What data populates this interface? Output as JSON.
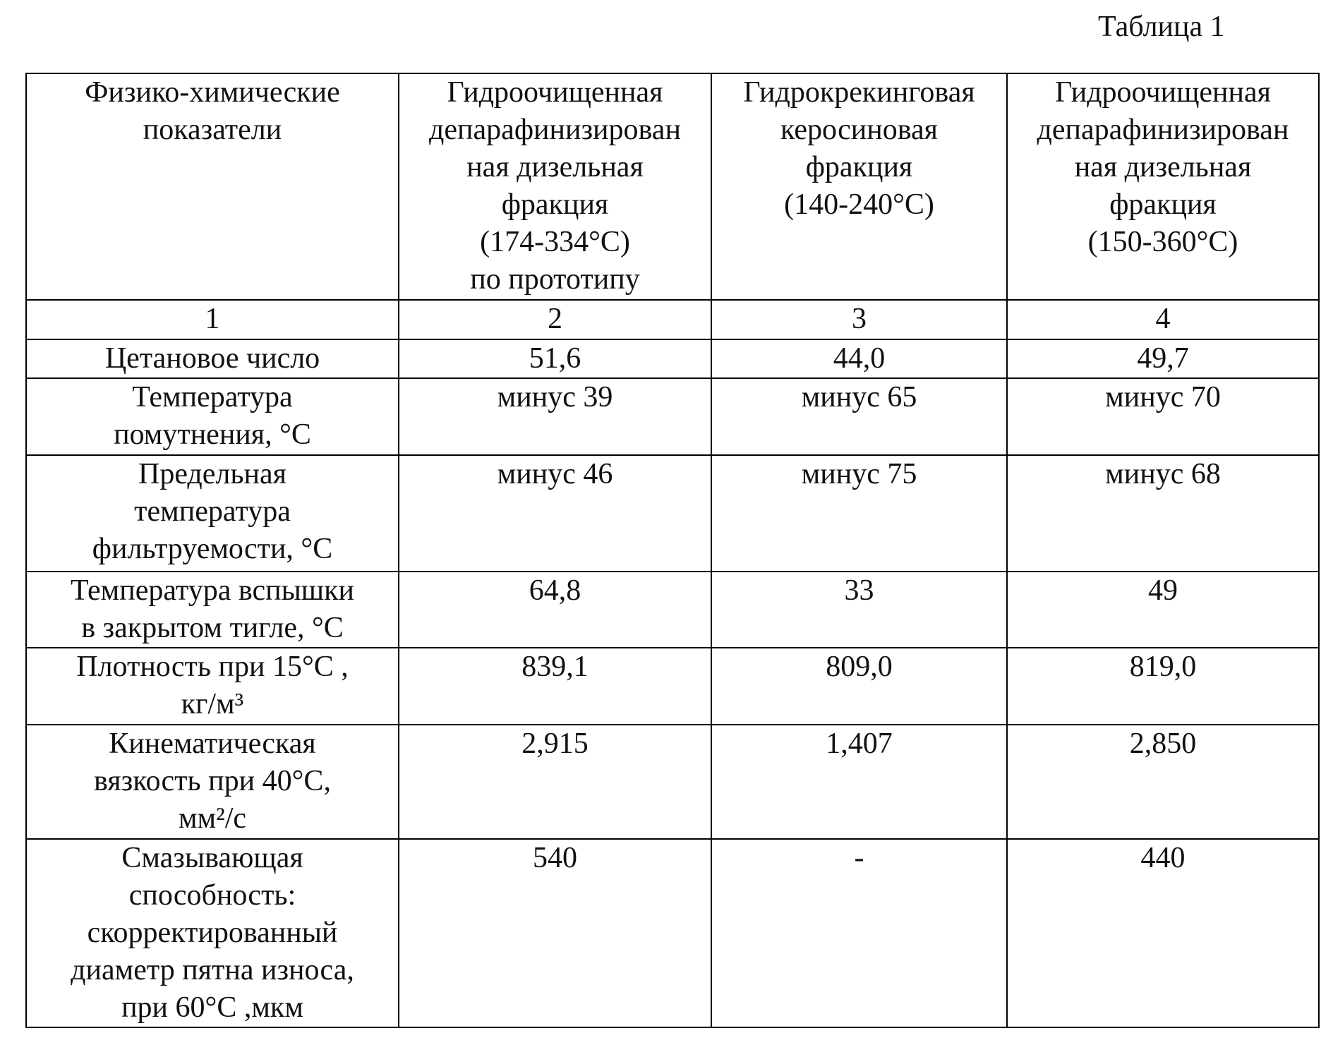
{
  "caption": "Таблица 1",
  "table": {
    "header": [
      [
        "Физико-химические",
        "показатели"
      ],
      [
        "Гидроочищенная",
        "депарафинизирован",
        "ная дизельная",
        "фракция",
        "(174-334°C)",
        "по прототипу"
      ],
      [
        "Гидрокрекинговая",
        "керосиновая",
        "фракция",
        "(140-240°C)"
      ],
      [
        "Гидроочищенная",
        "депарафинизирован",
        "ная дизельная",
        "фракция",
        "(150-360°C)"
      ]
    ],
    "numbers": [
      "1",
      "2",
      "3",
      "4"
    ],
    "rows": [
      [
        [
          "Цетановое число"
        ],
        [
          "51,6"
        ],
        [
          "44,0"
        ],
        [
          "49,7"
        ]
      ],
      [
        [
          "Температура",
          "помутнения, °C"
        ],
        [
          "минус 39"
        ],
        [
          "минус 65"
        ],
        [
          "минус 70"
        ]
      ],
      [
        [
          "Предельная",
          "температура",
          "фильтруемости, °C"
        ],
        [
          "минус 46"
        ],
        [
          "минус 75"
        ],
        [
          "минус 68"
        ]
      ],
      [
        [
          "Температура вспышки",
          "в закрытом тигле, °C"
        ],
        [
          "64,8"
        ],
        [
          "33"
        ],
        [
          "49"
        ]
      ],
      [
        [
          "Плотность при 15°C ,",
          "кг/м³"
        ],
        [
          "839,1"
        ],
        [
          "809,0"
        ],
        [
          "819,0"
        ]
      ],
      [
        [
          "Кинематическая",
          "вязкость при 40°C,",
          "мм²/с"
        ],
        [
          "2,915"
        ],
        [
          "1,407"
        ],
        [
          "2,850"
        ]
      ],
      [
        [
          "Смазывающая",
          "способность:",
          "скорректированный",
          "диаметр пятна износа,",
          "при 60°C ,мкм"
        ],
        [
          "540"
        ],
        [
          "-"
        ],
        [
          "440"
        ]
      ]
    ]
  }
}
